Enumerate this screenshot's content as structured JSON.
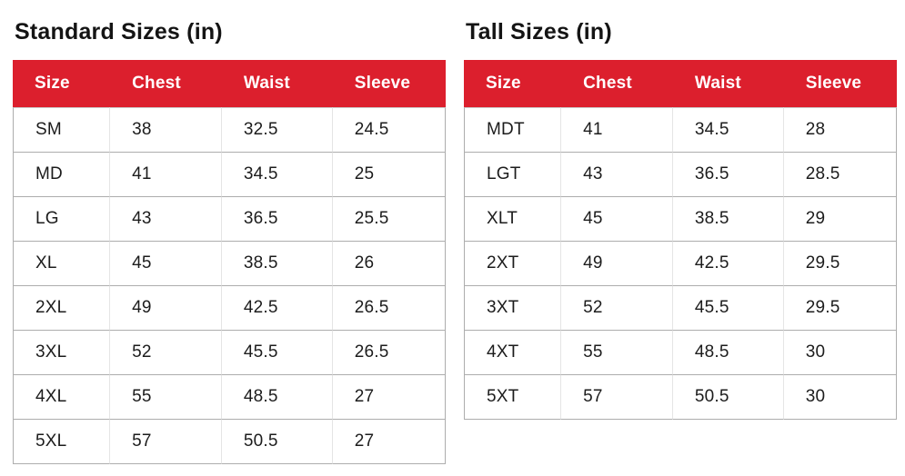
{
  "colors": {
    "header_background": "#dc1f2d",
    "header_text": "#ffffff",
    "row_border": "#adadad",
    "column_border": "#e5e5e5",
    "body_text": "#1c1c1c",
    "page_background": "#ffffff"
  },
  "chart_data": [
    {
      "type": "table",
      "title": "Standard Sizes (in)",
      "columns": [
        "Size",
        "Chest",
        "Waist",
        "Sleeve"
      ],
      "rows": [
        [
          "SM",
          "38",
          "32.5",
          "24.5"
        ],
        [
          "MD",
          "41",
          "34.5",
          "25"
        ],
        [
          "LG",
          "43",
          "36.5",
          "25.5"
        ],
        [
          "XL",
          "45",
          "38.5",
          "26"
        ],
        [
          "2XL",
          "49",
          "42.5",
          "26.5"
        ],
        [
          "3XL",
          "52",
          "45.5",
          "26.5"
        ],
        [
          "4XL",
          "55",
          "48.5",
          "27"
        ],
        [
          "5XL",
          "57",
          "50.5",
          "27"
        ]
      ]
    },
    {
      "type": "table",
      "title": "Tall Sizes (in)",
      "columns": [
        "Size",
        "Chest",
        "Waist",
        "Sleeve"
      ],
      "rows": [
        [
          "MDT",
          "41",
          "34.5",
          "28"
        ],
        [
          "LGT",
          "43",
          "36.5",
          "28.5"
        ],
        [
          "XLT",
          "45",
          "38.5",
          "29"
        ],
        [
          "2XT",
          "49",
          "42.5",
          "29.5"
        ],
        [
          "3XT",
          "52",
          "45.5",
          "29.5"
        ],
        [
          "4XT",
          "55",
          "48.5",
          "30"
        ],
        [
          "5XT",
          "57",
          "50.5",
          "30"
        ]
      ]
    }
  ]
}
